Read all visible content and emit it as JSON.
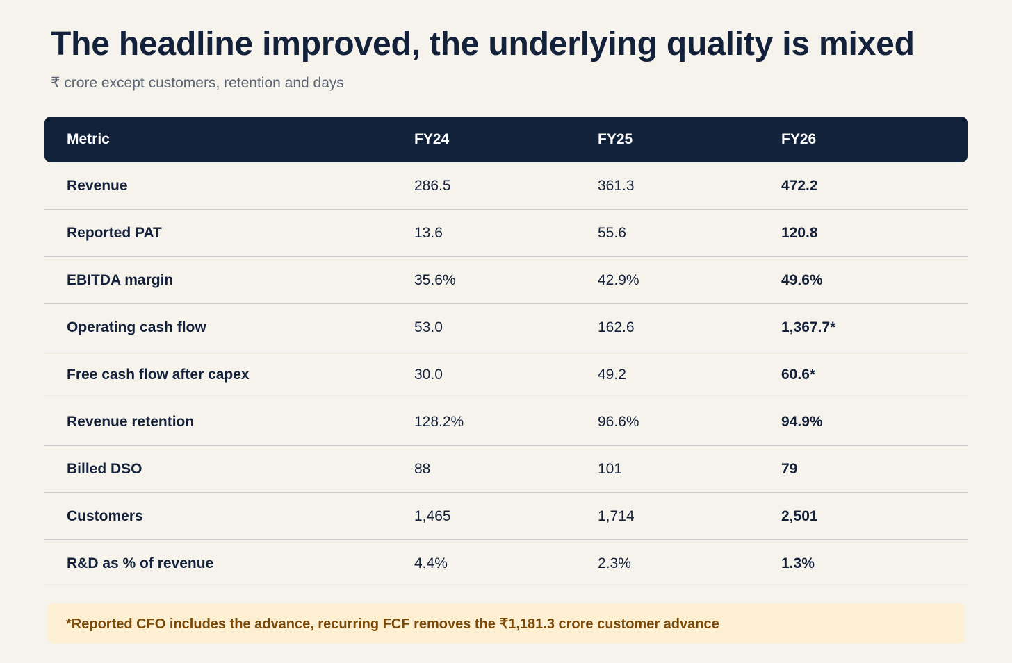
{
  "title": "The headline improved, the underlying quality is mixed",
  "subtitle": "₹ crore except customers, retention and days",
  "table": {
    "headers": [
      "Metric",
      "FY24",
      "FY25",
      "FY26"
    ],
    "rows": [
      [
        "Revenue",
        "286.5",
        "361.3",
        "472.2"
      ],
      [
        "Reported PAT",
        "13.6",
        "55.6",
        "120.8"
      ],
      [
        "EBITDA margin",
        "35.6%",
        "42.9%",
        "49.6%"
      ],
      [
        "Operating cash flow",
        "53.0",
        "162.6",
        "1,367.7*"
      ],
      [
        "Free cash flow after capex",
        "30.0",
        "49.2",
        "60.6*"
      ],
      [
        "Revenue retention",
        "128.2%",
        "96.6%",
        "94.9%"
      ],
      [
        "Billed DSO",
        "88",
        "101",
        "79"
      ],
      [
        "Customers",
        "1,465",
        "1,714",
        "2,501"
      ],
      [
        "R&D as % of revenue",
        "4.4%",
        "2.3%",
        "1.3%"
      ]
    ]
  },
  "footnote": "*Reported CFO includes the advance, recurring FCF removes the ₹1,181.3 crore customer advance",
  "colors": {
    "background": "#f6f3ec",
    "header_background": "#13223b",
    "note_background": "#fdefd2",
    "note_text": "#7a4a0a"
  }
}
